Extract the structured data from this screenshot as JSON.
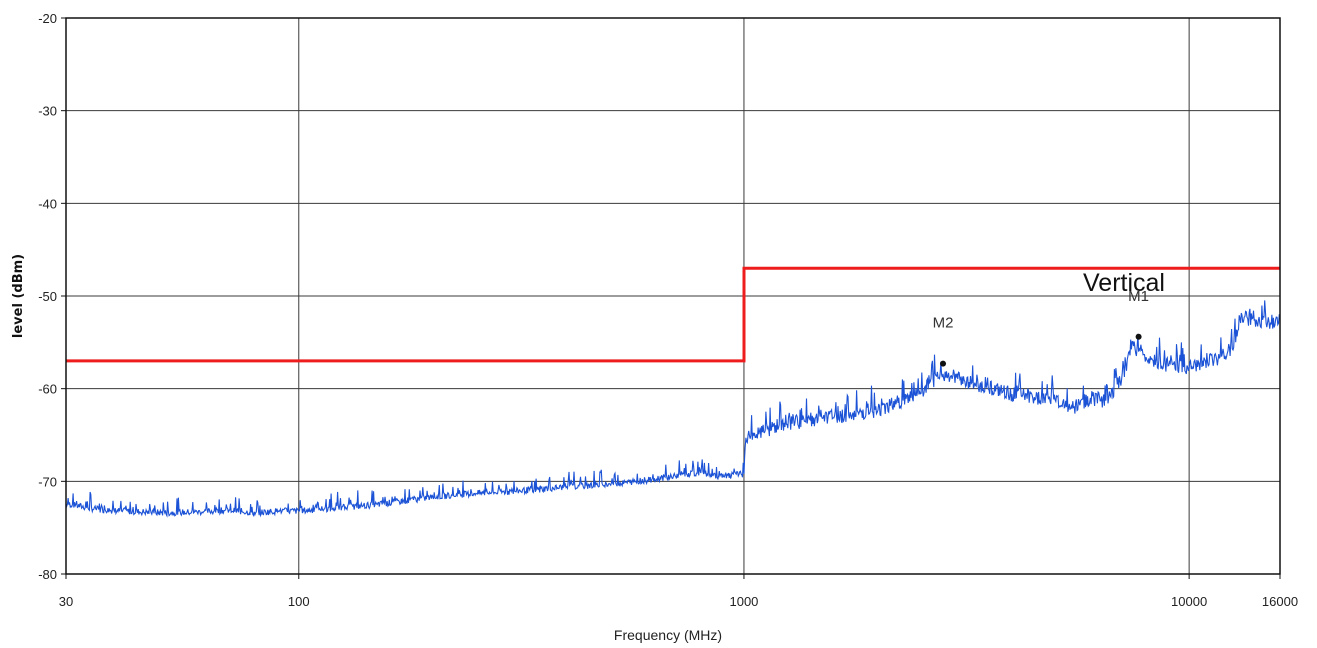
{
  "chart_data": {
    "type": "line",
    "title": "",
    "xlabel": "Frequency (MHz)",
    "ylabel": "level (dBm)",
    "x_scale": "log",
    "xlim": [
      30,
      16000
    ],
    "ylim": [
      -80,
      -20
    ],
    "x_ticks": [
      30,
      100,
      1000,
      10000,
      16000
    ],
    "x_tick_labels": [
      "30",
      "100",
      "1000",
      "10000",
      "16000"
    ],
    "y_ticks": [
      -20,
      -30,
      -40,
      -50,
      -60,
      -70,
      -80
    ],
    "y_tick_labels": [
      "-20",
      "-30",
      "-40",
      "-50",
      "-60",
      "-70",
      "-80"
    ],
    "grid": true,
    "annotation": "Vertical",
    "series": [
      {
        "color": "#ee1c1c",
        "step": true,
        "x": [
          30,
          1000,
          1000,
          16000
        ],
        "y": [
          -57,
          -57,
          -47,
          -47
        ]
      },
      {
        "color": "#1b52d6",
        "x": [
          30,
          35,
          40,
          50,
          60,
          70,
          80,
          90,
          100,
          120,
          150,
          200,
          250,
          300,
          400,
          500,
          600,
          700,
          800,
          900,
          1000,
          1010,
          1100,
          1200,
          1500,
          2000,
          2500,
          2800,
          3000,
          3500,
          4000,
          5000,
          5500,
          6000,
          6500,
          7000,
          7500,
          8000,
          9000,
          10000,
          11000,
          12000,
          12500,
          13000,
          14000,
          15000,
          16000
        ],
        "y": [
          -72.4,
          -73,
          -73.2,
          -73.4,
          -73.3,
          -73.1,
          -73.4,
          -73.2,
          -73.2,
          -72.9,
          -72.5,
          -71.7,
          -71.3,
          -71.1,
          -70.6,
          -70.3,
          -69.9,
          -69.4,
          -69.1,
          -69.5,
          -69.2,
          -65.3,
          -64.7,
          -63.9,
          -63.2,
          -62.3,
          -60.5,
          -58.4,
          -58.8,
          -59.9,
          -60.6,
          -61.2,
          -62.1,
          -61.0,
          -61.3,
          -59.2,
          -55.4,
          -56.6,
          -57.5,
          -57.8,
          -57.2,
          -56.8,
          -55.7,
          -52.4,
          -52.6,
          -52.9,
          -52.5
        ]
      }
    ],
    "markers": [
      {
        "label": "M2",
        "x": 2800,
        "y": -57.3
      },
      {
        "label": "M1",
        "x": 7700,
        "y": -54.4
      }
    ]
  }
}
